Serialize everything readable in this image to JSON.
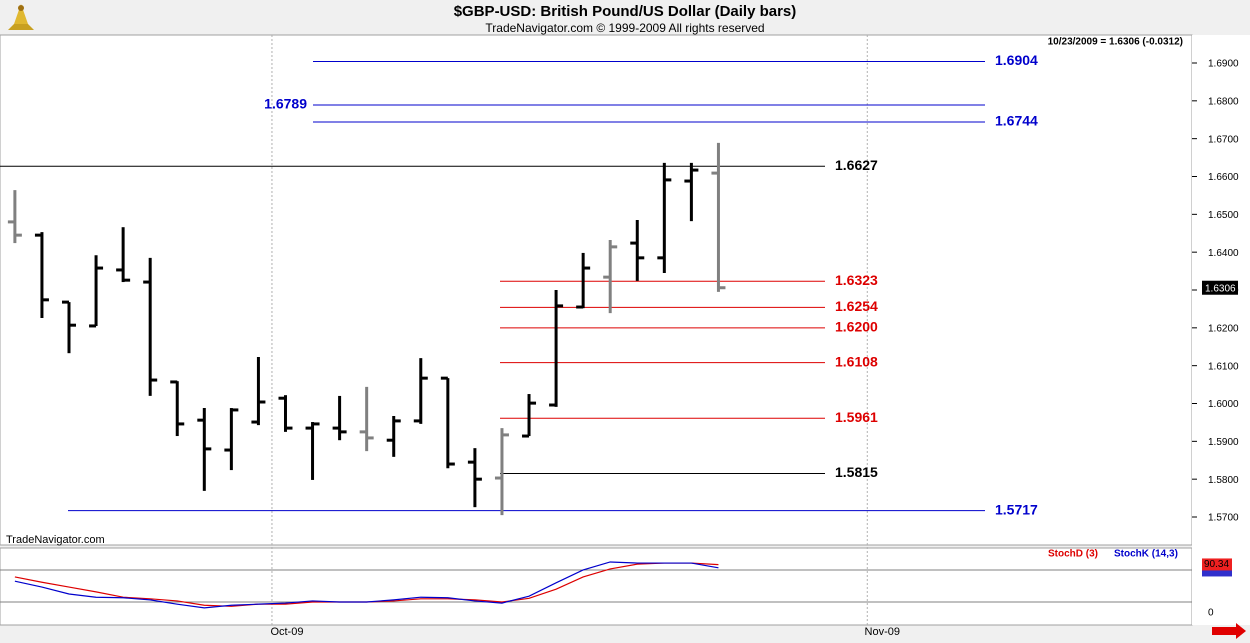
{
  "chart_data": {
    "type": "ohlc",
    "title": "$GBP-USD:  British Pound/US Dollar  (Daily bars)",
    "subtitle": "TradeNavigator.com © 1999-2009 All rights reserved",
    "quote_header": "10/23/2009 = 1.6306 (-0.0312)",
    "watermark": "TradeNavigator.com",
    "x": [
      0,
      1,
      2,
      3,
      4,
      5,
      6,
      7,
      8,
      9,
      10,
      11,
      12,
      13,
      14,
      15,
      16,
      17,
      18,
      19,
      20,
      21,
      22,
      23,
      24,
      25,
      26
    ],
    "open": [
      1.648,
      1.6445,
      1.6268,
      1.6205,
      1.6353,
      1.6321,
      1.6057,
      1.5956,
      1.5877,
      1.5951,
      1.6014,
      1.5935,
      1.5935,
      1.5925,
      1.5903,
      1.5954,
      1.6067,
      1.5845,
      1.5803,
      1.5914,
      1.5996,
      1.6255,
      1.6334,
      1.6424,
      1.6385,
      1.6588,
      1.6609
    ],
    "high": [
      1.6564,
      1.6453,
      1.6268,
      1.6392,
      1.6466,
      1.6385,
      1.6059,
      1.5988,
      1.5988,
      1.6123,
      1.6022,
      1.5951,
      1.602,
      1.6044,
      1.5967,
      1.612,
      1.6067,
      1.5882,
      1.5935,
      1.6025,
      1.63,
      1.6398,
      1.6432,
      1.6485,
      1.6636,
      1.6636,
      1.6689
    ],
    "low": [
      1.6424,
      1.6226,
      1.6133,
      1.6205,
      1.6321,
      1.602,
      1.5914,
      1.5769,
      1.5824,
      1.5943,
      1.5925,
      1.5798,
      1.5903,
      1.5874,
      1.5859,
      1.5946,
      1.5829,
      1.5726,
      1.5705,
      1.5914,
      1.5991,
      1.6252,
      1.6239,
      1.6324,
      1.6345,
      1.6482,
      1.6295
    ],
    "close": [
      1.6445,
      1.6274,
      1.6207,
      1.6358,
      1.6326,
      1.6062,
      1.5946,
      1.588,
      1.5983,
      1.6004,
      1.5935,
      1.5946,
      1.5925,
      1.5909,
      1.5954,
      1.6067,
      1.584,
      1.58,
      1.5917,
      1.6001,
      1.6258,
      1.6358,
      1.6414,
      1.6385,
      1.6591,
      1.6617,
      1.6306
    ],
    "bar_colors": [
      "#808080",
      "#000000",
      "#000000",
      "#000000",
      "#000000",
      "#000000",
      "#000000",
      "#000000",
      "#000000",
      "#000000",
      "#000000",
      "#000000",
      "#000000",
      "#808080",
      "#000000",
      "#000000",
      "#000000",
      "#000000",
      "#808080",
      "#000000",
      "#000000",
      "#000000",
      "#808080",
      "#000000",
      "#000000",
      "#000000",
      "#808080"
    ],
    "xlim": [
      -0.55,
      43.5
    ],
    "xticks": [
      {
        "value": 9.5,
        "label": "Oct-09"
      },
      {
        "value": 31.5,
        "label": "Nov-09"
      }
    ],
    "ylim": [
      1.5626,
      1.6974
    ],
    "yticks": [
      {
        "value": 1.57,
        "label": "1.5700"
      },
      {
        "value": 1.58,
        "label": "1.5800"
      },
      {
        "value": 1.59,
        "label": "1.5900"
      },
      {
        "value": 1.6,
        "label": "1.6000"
      },
      {
        "value": 1.61,
        "label": "1.6100"
      },
      {
        "value": 1.62,
        "label": "1.6200"
      },
      {
        "value": 1.63,
        "label": "1.6300"
      },
      {
        "value": 1.64,
        "label": "1.6400"
      },
      {
        "value": 1.65,
        "label": "1.6500"
      },
      {
        "value": 1.66,
        "label": "1.6600"
      },
      {
        "value": 1.67,
        "label": "1.6700"
      },
      {
        "value": 1.68,
        "label": "1.6800"
      },
      {
        "value": 1.69,
        "label": "1.6900"
      }
    ],
    "last_price": {
      "value": 1.6306,
      "label": "1.6306"
    },
    "levels": [
      {
        "value": 1.6904,
        "label": "1.6904",
        "color": "#0000cc"
      },
      {
        "value": 1.6789,
        "label": "1.6789",
        "color": "#0000cc"
      },
      {
        "value": 1.6744,
        "label": "1.6744",
        "color": "#0000cc"
      },
      {
        "value": 1.6627,
        "label": "1.6627",
        "color": "#000000"
      },
      {
        "value": 1.6323,
        "label": "1.6323",
        "color": "#dd0000"
      },
      {
        "value": 1.6254,
        "label": "1.6254",
        "color": "#dd0000"
      },
      {
        "value": 1.62,
        "label": "1.6200",
        "color": "#dd0000"
      },
      {
        "value": 1.6108,
        "label": "1.6108",
        "color": "#dd0000"
      },
      {
        "value": 1.5961,
        "label": "1.5961",
        "color": "#dd0000"
      },
      {
        "value": 1.5815,
        "label": "1.5815",
        "color": "#000000"
      },
      {
        "value": 1.5717,
        "label": "1.5717",
        "color": "#0000cc"
      }
    ],
    "stochastic": {
      "ylim": [
        0,
        100
      ],
      "yticks": [
        0
      ],
      "reference_lines": [
        20,
        80
      ],
      "last_value": 90.34,
      "series": [
        {
          "name": "StochD (3)",
          "color": "#dd0000",
          "values": [
            67,
            57,
            48,
            39,
            29,
            26,
            22,
            14,
            12,
            16,
            16,
            20,
            20,
            20,
            22,
            26,
            26,
            24,
            20,
            27,
            44,
            67,
            82,
            91,
            93,
            93,
            90
          ]
        },
        {
          "name": "StochK (14,3)",
          "color": "#0000cc",
          "values": [
            59,
            48,
            35,
            29,
            28,
            24,
            16,
            9,
            14,
            16,
            18,
            22,
            20,
            20,
            24,
            29,
            28,
            22,
            18,
            31,
            56,
            80,
            95,
            93,
            93,
            93,
            84
          ]
        }
      ]
    }
  }
}
